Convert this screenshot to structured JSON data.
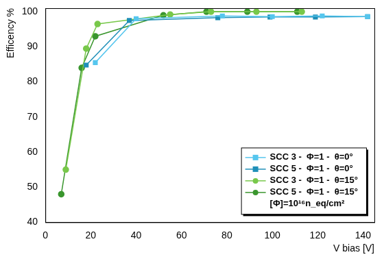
{
  "chart_data": {
    "type": "line",
    "x_label": "V bias [V]",
    "y_label": "Efficency %",
    "annotation": "[Φ]=10¹⁶n_eq/cm²",
    "xlim": [
      0,
      145
    ],
    "xticks": [
      0,
      20,
      40,
      60,
      80,
      100,
      120,
      140
    ],
    "ylim": [
      40,
      101
    ],
    "yticks": [
      40,
      50,
      60,
      70,
      80,
      90,
      100
    ],
    "grid": false,
    "legend": "lower right",
    "series": [
      {
        "name": "SCC 3 -  Φ=1 -  θ=0°",
        "color": "#56c6ee",
        "marker": "square",
        "x": [
          22,
          40,
          78,
          100,
          122,
          142
        ],
        "values": [
          85.5,
          98.0,
          98.8,
          98.6,
          98.8,
          98.6
        ]
      },
      {
        "name": "SCC 5 -  Φ=1 -  θ=0°",
        "color": "#1f8fb8",
        "marker": "square",
        "x": [
          18,
          37,
          76,
          99,
          119,
          142
        ],
        "values": [
          84.8,
          97.5,
          98.3,
          98.5,
          98.5,
          98.6
        ]
      },
      {
        "name": "SCC 3 -  Φ=1 -  θ=15°",
        "color": "#78c84a",
        "marker": "circle",
        "x": [
          9,
          18,
          23,
          55,
          73,
          93,
          113
        ],
        "values": [
          55,
          89.5,
          96.5,
          99.2,
          100,
          100,
          100
        ]
      },
      {
        "name": "SCC 5 -  Φ=1 -  θ=15°",
        "color": "#3a962e",
        "marker": "circle",
        "x": [
          7,
          16,
          22,
          52,
          71,
          89,
          111
        ],
        "values": [
          48,
          84,
          93,
          99,
          100,
          100,
          100
        ]
      }
    ]
  }
}
